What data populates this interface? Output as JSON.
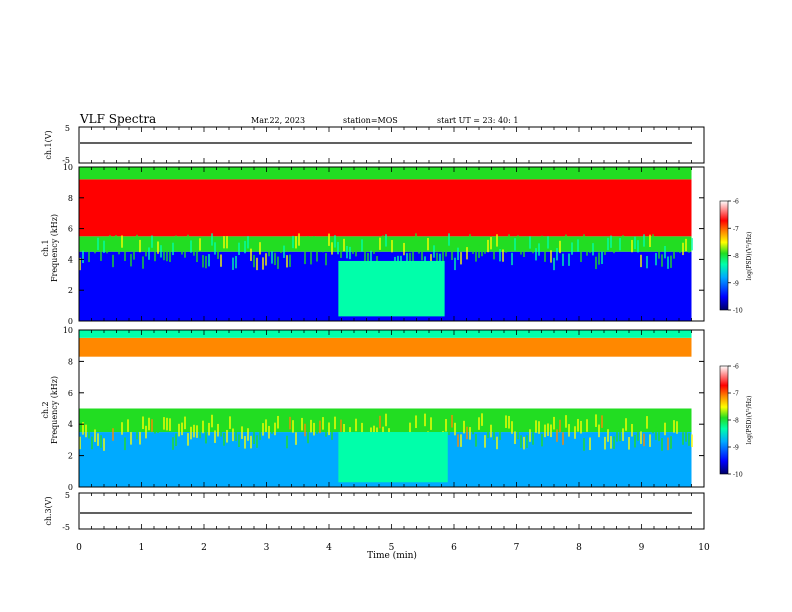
{
  "header": {
    "title": "VLF Spectra",
    "date": "Mar.22, 2023",
    "station": "station=MOS",
    "start": "start UT = 23: 40: 1"
  },
  "colors": {
    "colormap": [
      "#000066",
      "#0000ff",
      "#00aaff",
      "#00ffaa",
      "#22dd22",
      "#ffff00",
      "#ff8800",
      "#ff0000",
      "#ffffff"
    ],
    "frame": "#000000"
  },
  "chart_data": [
    {
      "type": "line",
      "panel": "waveform-ch1",
      "ylabel": "ch.1(V)",
      "ylim": [
        -5,
        5
      ],
      "yticks": [
        "5",
        "-5"
      ],
      "x": [
        0,
        1,
        2,
        3,
        4,
        5,
        6,
        7,
        8,
        9,
        9.8
      ],
      "y": [
        0,
        0,
        0,
        0,
        0,
        0,
        0,
        0,
        0,
        0,
        0
      ]
    },
    {
      "type": "heatmap",
      "panel": "spectrogram-ch1",
      "ylabel_top": "ch.1",
      "ylabel": "Frequency (kHz)",
      "ylim": [
        0,
        10
      ],
      "yticks": [
        "0",
        "2",
        "4",
        "6",
        "8",
        "10"
      ],
      "xlim": [
        0,
        10
      ],
      "data_extent_min": 9.8,
      "colorbar": {
        "label": "log(PSD)(V²/Hz)",
        "range": [
          -10,
          -6
        ],
        "ticks": [
          "-6",
          "-7",
          "-8",
          "-9",
          "-10"
        ]
      },
      "bands": [
        {
          "f_min": 0,
          "f_max": 4.5,
          "log_psd": -9.3
        },
        {
          "f_min": 4.5,
          "f_max": 5.5,
          "log_psd": -8.2
        },
        {
          "f_min": 5.5,
          "f_max": 9.2,
          "log_psd": -6.8
        },
        {
          "f_min": 9.2,
          "f_max": 10,
          "log_psd": -8.0
        }
      ],
      "events": [
        {
          "t_start": 4.15,
          "t_end": 5.85,
          "f_min": 0.3,
          "f_max": 3.9,
          "log_psd": -8.3
        }
      ]
    },
    {
      "type": "heatmap",
      "panel": "spectrogram-ch2",
      "ylabel_top": "ch.2",
      "ylabel": "Frequency (kHz)",
      "ylim": [
        0,
        10
      ],
      "yticks": [
        "0",
        "2",
        "4",
        "6",
        "8",
        "10"
      ],
      "xlim": [
        0,
        10
      ],
      "data_extent_min": 9.8,
      "colorbar": {
        "label": "log(PSD)(V²/Hz)",
        "range": [
          -10,
          -6
        ],
        "ticks": [
          "-6",
          "-7",
          "-8",
          "-9",
          "-10"
        ]
      },
      "bands": [
        {
          "f_min": 0,
          "f_max": 3.5,
          "log_psd": -9.0
        },
        {
          "f_min": 3.5,
          "f_max": 5.0,
          "log_psd": -7.8
        },
        {
          "f_min": 5.0,
          "f_max": 8.3,
          "log_psd": -6.3
        },
        {
          "f_min": 8.3,
          "f_max": 9.5,
          "log_psd": -7.2
        },
        {
          "f_min": 9.5,
          "f_max": 10,
          "log_psd": -8.5
        }
      ],
      "events": [
        {
          "t_start": 4.15,
          "t_end": 5.9,
          "f_min": 0.3,
          "f_max": 3.5,
          "log_psd": -8.5
        }
      ]
    },
    {
      "type": "line",
      "panel": "waveform-ch3",
      "ylabel": "ch.3(V)",
      "ylim": [
        -5,
        5
      ],
      "yticks": [
        "5",
        "-5"
      ],
      "x": [
        0,
        1,
        2,
        3,
        4,
        5,
        6,
        7,
        8,
        9,
        9.8
      ],
      "y": [
        0,
        0,
        0,
        0,
        0,
        0,
        0,
        0,
        0,
        0,
        0
      ]
    }
  ],
  "time_axis": {
    "xlabel": "Time (min)",
    "ticks": [
      "0",
      "1",
      "2",
      "3",
      "4",
      "5",
      "6",
      "7",
      "8",
      "9",
      "10"
    ],
    "xlim": [
      0,
      10
    ]
  }
}
